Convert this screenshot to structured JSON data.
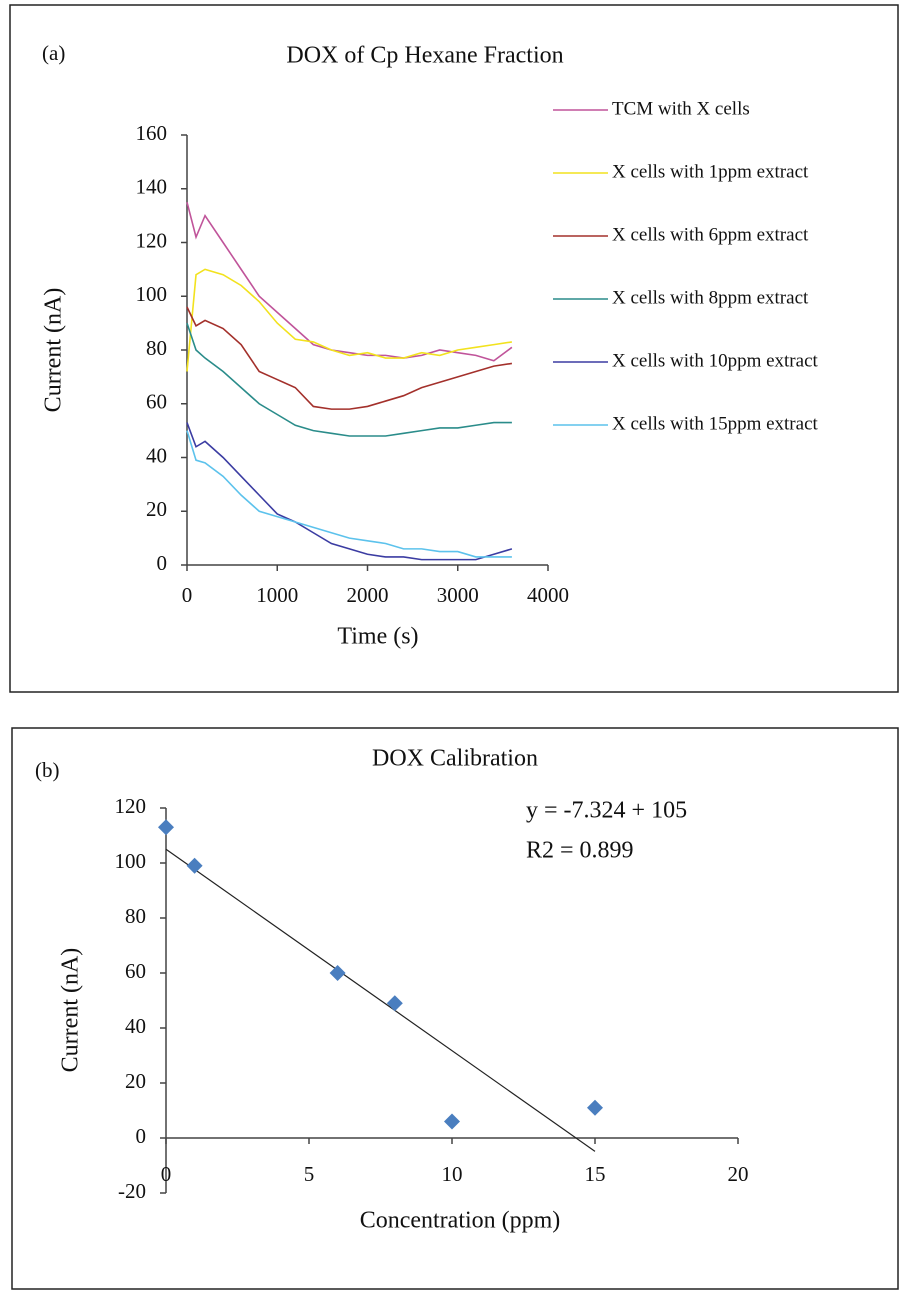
{
  "chart_data": [
    {
      "type": "line",
      "panel_label": "(a)",
      "title": "DOX of Cp Hexane Fraction",
      "x_label": "Time (s)",
      "y_label": "Current (nA)",
      "x": [
        0,
        100,
        200,
        400,
        600,
        800,
        1000,
        1200,
        1400,
        1600,
        1800,
        2000,
        2200,
        2400,
        2600,
        2800,
        3000,
        3200,
        3400,
        3600
      ],
      "series": [
        {
          "name": "TCM with X cells",
          "color": "#c0549a",
          "values": [
            135,
            122,
            130,
            120,
            110,
            100,
            94,
            88,
            82,
            80,
            79,
            78,
            78,
            77,
            78,
            80,
            79,
            78,
            76,
            81
          ]
        },
        {
          "name": "X cells with 1ppm extract",
          "color": "#f2e21e",
          "values": [
            72,
            108,
            110,
            108,
            104,
            98,
            90,
            84,
            83,
            80,
            78,
            79,
            77,
            77,
            79,
            78,
            80,
            81,
            82,
            83
          ]
        },
        {
          "name": "X cells with 6ppm extract",
          "color": "#a3302b",
          "values": [
            96,
            89,
            91,
            88,
            82,
            72,
            69,
            66,
            59,
            58,
            58,
            59,
            61,
            63,
            66,
            68,
            70,
            72,
            74,
            75
          ]
        },
        {
          "name": "X cells with 8ppm extract",
          "color": "#2a8c8a",
          "values": [
            90,
            80,
            77,
            72,
            66,
            60,
            56,
            52,
            50,
            49,
            48,
            48,
            48,
            49,
            50,
            51,
            51,
            52,
            53,
            53
          ]
        },
        {
          "name": "X cells with 10ppm extract",
          "color": "#3b3ca2",
          "values": [
            53,
            44,
            46,
            40,
            33,
            26,
            19,
            16,
            12,
            8,
            6,
            4,
            3,
            3,
            2,
            2,
            2,
            2,
            4,
            6
          ]
        },
        {
          "name": "X cells with 15ppm extract",
          "color": "#5cc2ec",
          "values": [
            50,
            39,
            38,
            33,
            26,
            20,
            18,
            16,
            14,
            12,
            10,
            9,
            8,
            6,
            6,
            5,
            5,
            3,
            3,
            3
          ]
        }
      ],
      "xlim": [
        0,
        4000
      ],
      "xticks": [
        0,
        1000,
        2000,
        3000,
        4000
      ],
      "ylim": [
        0,
        160
      ],
      "yticks": [
        0,
        20,
        40,
        60,
        80,
        100,
        120,
        140,
        160
      ]
    },
    {
      "type": "scatter",
      "panel_label": "(b)",
      "title": "DOX Calibration",
      "x_label": "Concentration (ppm)",
      "y_label": "Current (nA)",
      "annotations": [
        "y = -7.324 + 105",
        "R2 = 0.899"
      ],
      "x": [
        0,
        1,
        6,
        8,
        10,
        15
      ],
      "values": [
        113,
        99,
        60,
        49,
        6,
        11
      ],
      "color": "#4a7ebf",
      "trendline": {
        "slope": -7.324,
        "intercept": 105
      },
      "xlim": [
        0,
        20
      ],
      "xticks": [
        0,
        5,
        10,
        15,
        20
      ],
      "ylim": [
        -20,
        120
      ],
      "yticks": [
        -20,
        0,
        20,
        40,
        60,
        80,
        100,
        120
      ]
    }
  ]
}
